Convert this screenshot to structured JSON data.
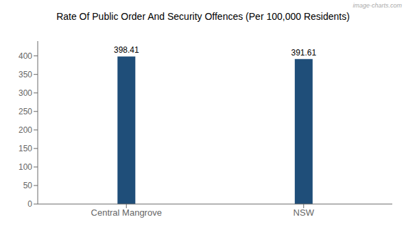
{
  "chart_data": {
    "type": "bar",
    "title": "Rate Of Public Order And Security Offences (Per 100,000 Residents)",
    "categories": [
      "Central Mangrove",
      "NSW"
    ],
    "values": [
      398.41,
      391.61
    ],
    "value_labels": [
      "398.41",
      "391.61"
    ],
    "color": "#1F4E79",
    "ylim": [
      0,
      440
    ],
    "yticks": [
      0,
      50,
      100,
      150,
      200,
      250,
      300,
      350,
      400
    ],
    "grid": false,
    "data_labels": true,
    "annotations": [
      "image-charts.com"
    ]
  }
}
